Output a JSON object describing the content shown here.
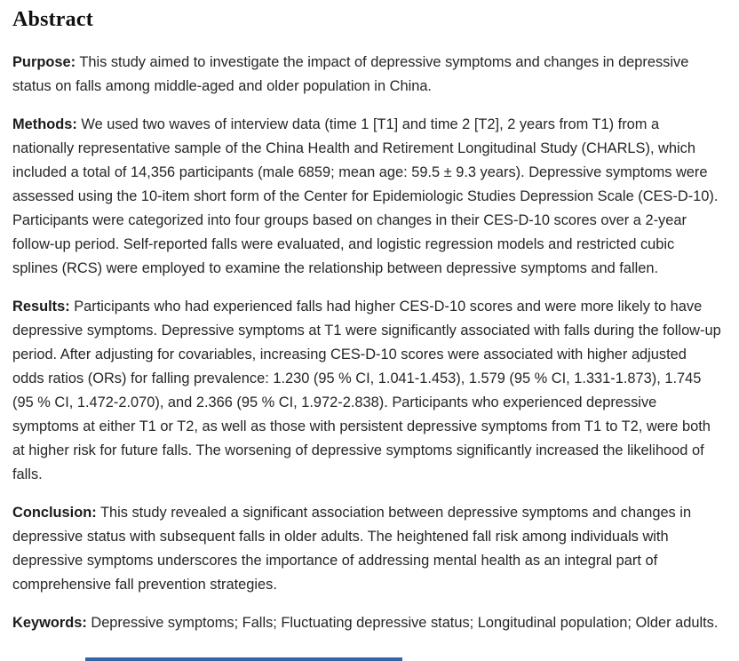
{
  "page": {
    "background": "#ffffff",
    "text_color": "#262626",
    "accent_blue": "#3465a4"
  },
  "abstract": {
    "title": "Abstract",
    "sections": [
      {
        "label": "Purpose:",
        "text": "This study aimed to investigate the impact of depressive symptoms and changes in depressive status on falls among middle-aged and older population in China."
      },
      {
        "label": "Methods:",
        "text": "We used two waves of interview data (time 1 [T1] and time 2 [T2], 2 years from T1) from a nationally representative sample of the China Health and Retirement Longitudinal Study (CHARLS), which included a total of 14,356 participants (male 6859; mean age: 59.5 ± 9.3 years). Depressive symptoms were assessed using the 10-item short form of the Center for Epidemiologic Studies Depression Scale (CES-D-10). Participants were categorized into four groups based on changes in their CES-D-10 scores over a 2-year follow-up period. Self-reported falls were evaluated, and logistic regression models and restricted cubic splines (RCS) were employed to examine the relationship between depressive symptoms and fallen."
      },
      {
        "label": "Results:",
        "text": "Participants who had experienced falls had higher CES-D-10 scores and were more likely to have depressive symptoms. Depressive symptoms at T1 were significantly associated with falls during the follow-up period. After adjusting for covariables, increasing CES-D-10 scores were associated with higher adjusted odds ratios (ORs) for falling prevalence: 1.230 (95 % CI, 1.041-1.453), 1.579 (95 % CI, 1.331-1.873), 1.745 (95 % CI, 1.472-2.070), and 2.366 (95 % CI, 1.972-2.838). Participants who experienced depressive symptoms at either T1 or T2, as well as those with persistent depressive symptoms from T1 to T2, were both at higher risk for future falls. The worsening of depressive symptoms significantly increased the likelihood of falls."
      },
      {
        "label": "Conclusion:",
        "text": "This study revealed a significant association between depressive symptoms and changes in depressive status with subsequent falls in older adults. The heightened fall risk among individuals with depressive symptoms underscores the importance of addressing mental health as an integral part of comprehensive fall prevention strategies."
      },
      {
        "label": "Keywords:",
        "text": "Depressive symptoms; Falls; Fluctuating depressive status; Longitudinal population; Older adults."
      }
    ]
  }
}
